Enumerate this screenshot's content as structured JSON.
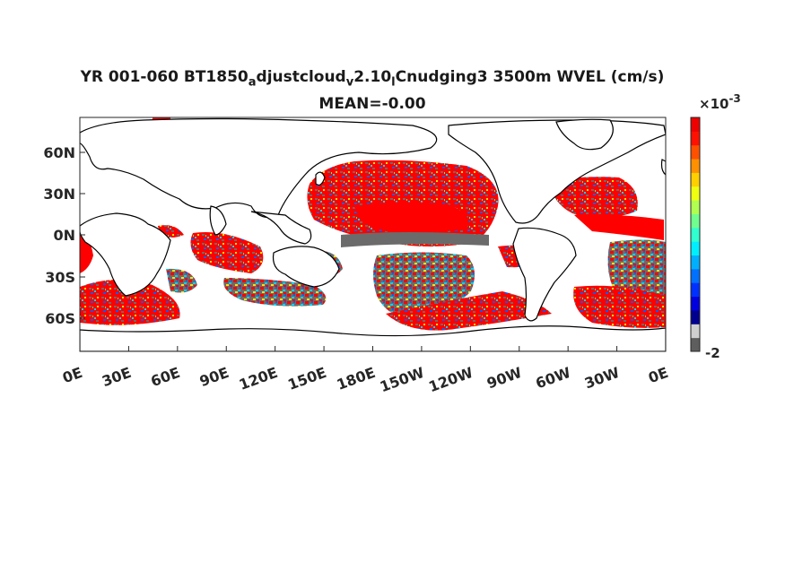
{
  "title": {
    "line1_parts": [
      "YR 001-060 BT1850",
      "a",
      "djustcloud",
      "v",
      "2.10",
      "l",
      "Cnudging3 3500m WVEL (cm/s)"
    ],
    "line2": "MEAN=-0.00"
  },
  "axes": {
    "lat_ticks": [
      "60N",
      "30N",
      "0N",
      "30S",
      "60S"
    ],
    "lon_ticks": [
      "0E",
      "30E",
      "60E",
      "90E",
      "120E",
      "150E",
      "180E",
      "150W",
      "120W",
      "90W",
      "60W",
      "30W",
      "0E"
    ]
  },
  "colorbar": {
    "scale_label": "×10",
    "scale_exponent": "-3",
    "min_label": "-2",
    "colors": [
      "#5e5e5e",
      "#cfcfcf",
      "#00008f",
      "#0000df",
      "#0030ff",
      "#0070ff",
      "#00b0ff",
      "#00efff",
      "#30ffcf",
      "#70ff8f",
      "#b0ff50",
      "#efff10",
      "#ffcf00",
      "#ff9000",
      "#ff5000",
      "#ff1000",
      "#ef0000"
    ]
  },
  "map": {
    "field_colors": {
      "positive": "#ff0000",
      "negative": "#6b6b6b",
      "near_zero": [
        "#0060ff",
        "#00d0ff",
        "#40ff90",
        "#ffe000",
        "#ffa000"
      ]
    },
    "land_color": "#ffffff",
    "coastline_color": "#000000"
  }
}
